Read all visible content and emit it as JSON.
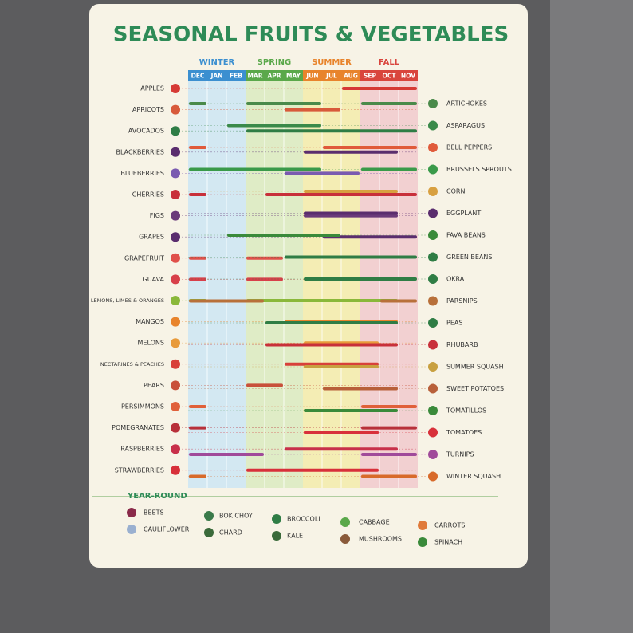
{
  "title": "SEASONAL FRUITS & VEGETABLES",
  "seasons": [
    {
      "name": "WINTER",
      "color": "#3b8fd0",
      "bg": "#d3e8f2",
      "months": [
        "DEC",
        "JAN",
        "FEB"
      ]
    },
    {
      "name": "SPRING",
      "color": "#5aa84a",
      "bg": "#dfecc6",
      "months": [
        "MAR",
        "APR",
        "MAY"
      ]
    },
    {
      "name": "SUMMER",
      "color": "#e8842c",
      "bg": "#f4edb4",
      "months": [
        "JUN",
        "JUL",
        "AUG"
      ]
    },
    {
      "name": "FALL",
      "color": "#d9453d",
      "bg": "#f2d0d1",
      "months": [
        "SEP",
        "OCT",
        "NOV"
      ]
    }
  ],
  "fruits": [
    {
      "name": "APPLES",
      "color": "#d63a35",
      "ranges": [
        [
          8,
          12
        ]
      ]
    },
    {
      "name": "APRICOTS",
      "color": "#d85a3a",
      "ranges": [
        [
          5,
          8
        ]
      ]
    },
    {
      "name": "AVOCADOS",
      "color": "#2f7d45",
      "ranges": [
        [
          3,
          12
        ]
      ]
    },
    {
      "name": "BLACKBERRIES",
      "color": "#5a2d6e",
      "ranges": [
        [
          6,
          11
        ]
      ]
    },
    {
      "name": "BLUEBERRIES",
      "color": "#7a5ab0",
      "ranges": [
        [
          5,
          9
        ]
      ]
    },
    {
      "name": "CHERRIES",
      "color": "#c8303a",
      "ranges": [
        [
          0,
          1
        ],
        [
          4,
          12
        ]
      ]
    },
    {
      "name": "FIGS",
      "color": "#6a3a7a",
      "ranges": [
        [
          6,
          11
        ]
      ]
    },
    {
      "name": "GRAPES",
      "color": "#5a2d6e",
      "ranges": [
        [
          7,
          12
        ]
      ]
    },
    {
      "name": "GRAPEFRUIT",
      "color": "#e0504a",
      "ranges": [
        [
          0,
          1
        ],
        [
          3,
          5
        ]
      ]
    },
    {
      "name": "GUAVA",
      "color": "#d8404a",
      "ranges": [
        [
          0,
          1
        ],
        [
          3,
          5
        ]
      ]
    },
    {
      "name": "LEMONS, LIMES & ORANGES",
      "color": "#8ab83a",
      "ranges": [
        [
          0,
          1
        ],
        [
          3,
          11
        ]
      ]
    },
    {
      "name": "MANGOS",
      "color": "#e8842c",
      "ranges": [
        [
          5,
          11
        ]
      ]
    },
    {
      "name": "MELONS",
      "color": "#e89a3a",
      "ranges": [
        [
          6,
          10
        ]
      ]
    },
    {
      "name": "NECTARINES & PEACHES",
      "color": "#d8403a",
      "ranges": [
        [
          5,
          10
        ]
      ]
    },
    {
      "name": "PEARS",
      "color": "#c8503a",
      "ranges": [
        [
          3,
          5
        ]
      ]
    },
    {
      "name": "PERSIMMONS",
      "color": "#e0603a",
      "ranges": [
        [
          0,
          1
        ],
        [
          9,
          12
        ]
      ]
    },
    {
      "name": "POMEGRANATES",
      "color": "#b8303a",
      "ranges": [
        [
          0,
          1
        ],
        [
          9,
          12
        ]
      ]
    },
    {
      "name": "RASPBERRIES",
      "color": "#c8304a",
      "ranges": [
        [
          5,
          11
        ]
      ]
    },
    {
      "name": "STRAWBERRIES",
      "color": "#d8303a",
      "ranges": [
        [
          3,
          10
        ]
      ]
    }
  ],
  "vegetables": [
    {
      "name": "ARTICHOKES",
      "color": "#4a8a4a",
      "ranges": [
        [
          0,
          1
        ],
        [
          3,
          7
        ],
        [
          9,
          12
        ]
      ]
    },
    {
      "name": "ASPARAGUS",
      "color": "#3a8a4a",
      "ranges": [
        [
          2,
          7
        ]
      ]
    },
    {
      "name": "BELL PEPPERS",
      "color": "#e05a3a",
      "ranges": [
        [
          0,
          1
        ],
        [
          7,
          12
        ]
      ]
    },
    {
      "name": "BRUSSELS SPROUTS",
      "color": "#3a9a4a",
      "ranges": [
        [
          0,
          7
        ],
        [
          9,
          12
        ]
      ]
    },
    {
      "name": "CORN",
      "color": "#d8a040",
      "ranges": [
        [
          6,
          11
        ]
      ]
    },
    {
      "name": "EGGPLANT",
      "color": "#5a2d6e",
      "ranges": [
        [
          6,
          11
        ]
      ]
    },
    {
      "name": "FAVA BEANS",
      "color": "#3a8a3a",
      "ranges": [
        [
          2,
          8
        ]
      ]
    },
    {
      "name": "GREEN BEANS",
      "color": "#2f7d45",
      "ranges": [
        [
          5,
          12
        ]
      ]
    },
    {
      "name": "OKRA",
      "color": "#2f7d45",
      "ranges": [
        [
          6,
          12
        ]
      ]
    },
    {
      "name": "PARSNIPS",
      "color": "#b8703a",
      "ranges": [
        [
          0,
          4
        ],
        [
          10,
          12
        ]
      ]
    },
    {
      "name": "PEAS",
      "color": "#2f7d45",
      "ranges": [
        [
          4,
          11
        ]
      ]
    },
    {
      "name": "RHUBARB",
      "color": "#c8303a",
      "ranges": [
        [
          4,
          11
        ]
      ]
    },
    {
      "name": "SUMMER SQUASH",
      "color": "#c8a040",
      "ranges": [
        [
          6,
          10
        ]
      ]
    },
    {
      "name": "SWEET POTATOES",
      "color": "#b8603a",
      "ranges": [
        [
          7,
          11
        ]
      ]
    },
    {
      "name": "TOMATILLOS",
      "color": "#3a8a3a",
      "ranges": [
        [
          6,
          11
        ]
      ]
    },
    {
      "name": "TOMATOES",
      "color": "#d8303a",
      "ranges": [
        [
          6,
          10
        ]
      ]
    },
    {
      "name": "TURNIPS",
      "color": "#a04a9a",
      "ranges": [
        [
          0,
          4
        ],
        [
          9,
          12
        ]
      ]
    },
    {
      "name": "WINTER SQUASH",
      "color": "#d86a2a",
      "ranges": [
        [
          0,
          1
        ],
        [
          9,
          12
        ]
      ]
    }
  ],
  "year_round": {
    "title": "YEAR-ROUND",
    "items": [
      "BEETS",
      "CAULIFLOWER",
      "BOK CHOY",
      "CHARD",
      "BROCCOLI",
      "KALE",
      "CABBAGE",
      "MUSHROOMS",
      "CARROTS",
      "SPINACH"
    ]
  }
}
